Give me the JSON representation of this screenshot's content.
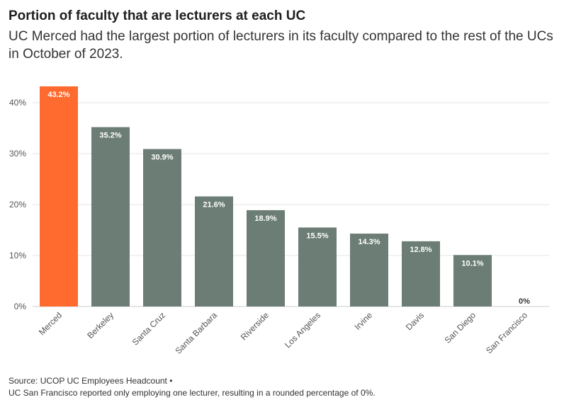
{
  "chart_data": {
    "type": "bar",
    "title": "Portion of faculty that are lecturers at each UC",
    "subtitle": "UC Merced had the largest portion of lecturers in its faculty compared to the rest of the UCs in October of 2023.",
    "categories": [
      "Merced",
      "Berkeley",
      "Santa Cruz",
      "Santa Barbara",
      "Riverside",
      "Los Angeles",
      "Irvine",
      "Davis",
      "San Diego",
      "San Francisco"
    ],
    "values": [
      43.2,
      35.2,
      30.9,
      21.6,
      18.9,
      15.5,
      14.3,
      12.8,
      10.1,
      0
    ],
    "value_labels": [
      "43.2%",
      "35.2%",
      "30.9%",
      "21.6%",
      "18.9%",
      "15.5%",
      "14.3%",
      "12.8%",
      "10.1%",
      "0%"
    ],
    "y_ticks": [
      0,
      10,
      20,
      30,
      40
    ],
    "y_tick_labels": [
      "0%",
      "10%",
      "20%",
      "30%",
      "40%"
    ],
    "ylim": [
      0,
      43.2
    ],
    "xlabel": "",
    "ylabel": "",
    "grid": true,
    "colors": {
      "highlight": "#ff6b2f",
      "default": "#6b7d74"
    }
  },
  "footer": {
    "source": "Source: UCOP UC Employees Headcount •",
    "note": "UC San Francisco reported only employing one lecturer, resulting in a rounded percentage of 0%."
  }
}
